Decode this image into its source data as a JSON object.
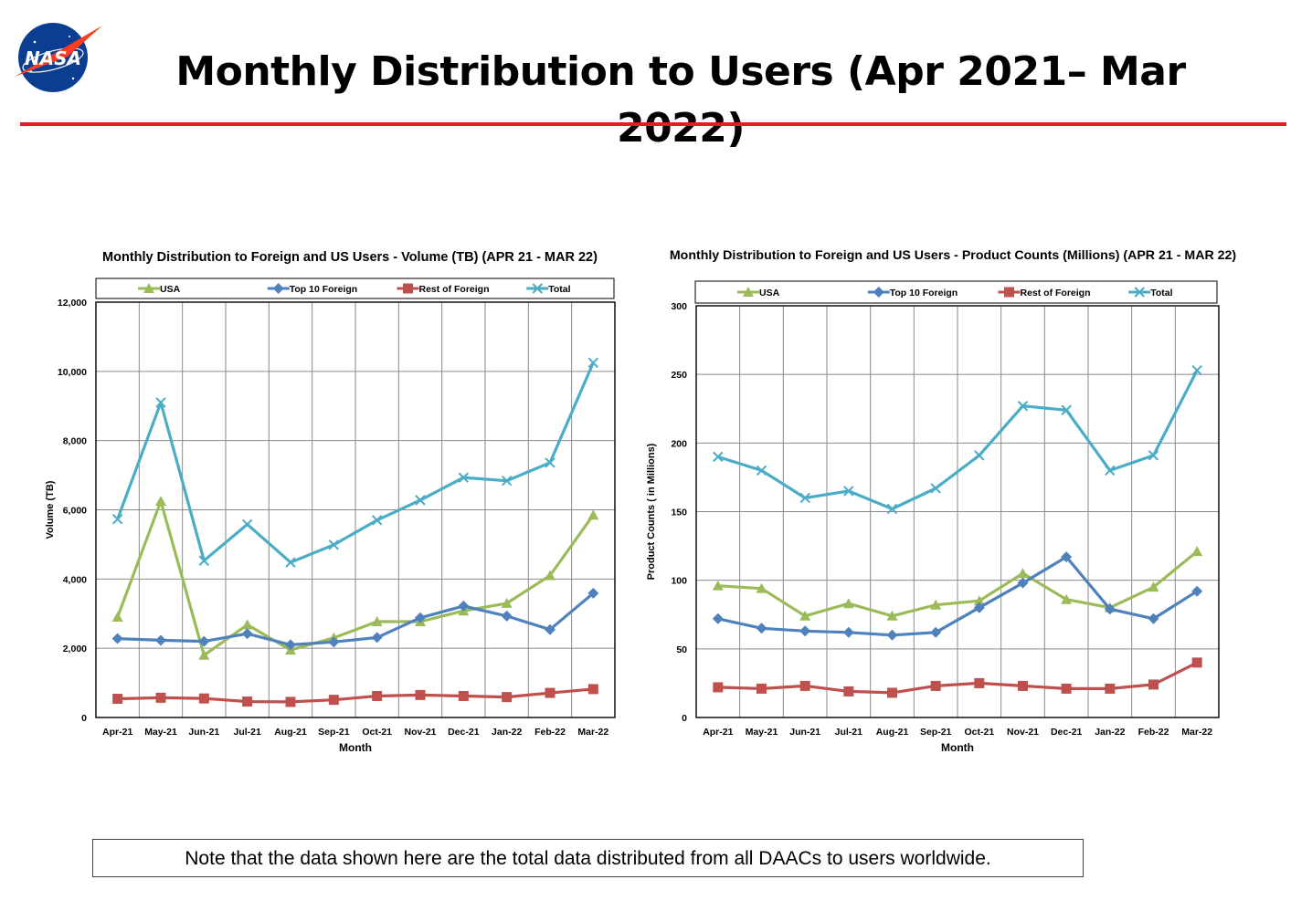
{
  "slide": {
    "title": "Monthly Distribution to Users (Apr 2021– Mar 2022)",
    "logo_text": "NASA",
    "note": "Note that the data shown here are the total data distributed from all DAACs to users worldwide."
  },
  "colors": {
    "accent_line": "#e31c23",
    "USA": "#9bbb59",
    "Top 10 Foreign": "#4f81bd",
    "Rest of Foreign": "#c0504d",
    "Total": "#4bacc6"
  },
  "chart_data": [
    {
      "type": "line",
      "title": "Monthly Distribution to Foreign and US Users - Volume  (TB) (APR 21 - MAR 22)",
      "xlabel": "Month",
      "ylabel": "Volume (TB)",
      "ylim": [
        0,
        12000
      ],
      "yticks": [
        0,
        2000,
        4000,
        6000,
        8000,
        10000,
        12000
      ],
      "ytick_labels": [
        "0",
        "2,000",
        "4,000",
        "6,000",
        "8,000",
        "10,000",
        "12,000"
      ],
      "grid": true,
      "legend": "top",
      "categories": [
        "Apr-21",
        "May-21",
        "Jun-21",
        "Jul-21",
        "Aug-21",
        "Sep-21",
        "Oct-21",
        "Nov-21",
        "Dec-21",
        "Jan-22",
        "Feb-22",
        "Mar-22"
      ],
      "series": [
        {
          "name": "USA",
          "marker": "triangle",
          "values": [
            2900,
            6250,
            1800,
            2680,
            1950,
            2300,
            2770,
            2770,
            3080,
            3300,
            4100,
            5850
          ]
        },
        {
          "name": "Top 10 Foreign",
          "marker": "diamond",
          "values": [
            2280,
            2230,
            2200,
            2420,
            2100,
            2180,
            2310,
            2880,
            3220,
            2930,
            2540,
            3590
          ]
        },
        {
          "name": "Rest of Foreign",
          "marker": "square",
          "values": [
            540,
            570,
            550,
            460,
            450,
            510,
            620,
            650,
            620,
            590,
            710,
            820
          ]
        },
        {
          "name": "Total",
          "marker": "x",
          "values": [
            5730,
            9100,
            4530,
            5580,
            4480,
            4990,
            5700,
            6280,
            6930,
            6840,
            7360,
            10250
          ]
        }
      ]
    },
    {
      "type": "line",
      "title": "Monthly Distribution to Foreign and US Users - Product Counts (Millions) (APR 21 - MAR 22)",
      "xlabel": "Month",
      "ylabel": "Product Counts ( in Millions)",
      "ylim": [
        0,
        300
      ],
      "yticks": [
        0,
        50,
        100,
        150,
        200,
        250,
        300
      ],
      "ytick_labels": [
        "0",
        "50",
        "100",
        "150",
        "200",
        "250",
        "300"
      ],
      "grid": true,
      "legend": "top",
      "categories": [
        "Apr-21",
        "May-21",
        "Jun-21",
        "Jul-21",
        "Aug-21",
        "Sep-21",
        "Oct-21",
        "Nov-21",
        "Dec-21",
        "Jan-22",
        "Feb-22",
        "Mar-22"
      ],
      "series": [
        {
          "name": "USA",
          "marker": "triangle",
          "values": [
            96,
            94,
            74,
            83,
            74,
            82,
            85,
            105,
            86,
            80,
            95,
            121
          ]
        },
        {
          "name": "Top 10 Foreign",
          "marker": "diamond",
          "values": [
            72,
            65,
            63,
            62,
            60,
            62,
            80,
            98,
            117,
            79,
            72,
            92
          ]
        },
        {
          "name": "Rest of Foreign",
          "marker": "square",
          "values": [
            22,
            21,
            23,
            19,
            18,
            23,
            25,
            23,
            21,
            21,
            24,
            40
          ]
        },
        {
          "name": "Total",
          "marker": "x",
          "values": [
            190,
            180,
            160,
            165,
            152,
            167,
            191,
            227,
            224,
            180,
            191,
            253
          ]
        }
      ]
    }
  ]
}
